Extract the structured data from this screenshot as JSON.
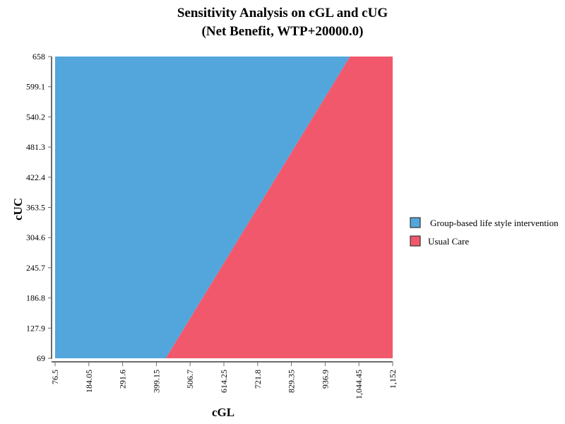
{
  "chart_data": {
    "type": "area",
    "title_line1": "Sensitivity Analysis on cGL and cUG",
    "title_line2": "(Net Benefit, WTP+20000.0)",
    "xlabel": "cGL",
    "ylabel": "cUC",
    "xlim": [
      76.5,
      1152
    ],
    "ylim": [
      69,
      658
    ],
    "x_ticks": [
      "76.5",
      "184.05",
      "291.6",
      "399.15",
      "506.7",
      "614.25",
      "721.8",
      "829.35",
      "936.9",
      "1,044.45",
      "1,152"
    ],
    "y_ticks": [
      "69",
      "127.9",
      "186.8",
      "245.7",
      "304.6",
      "363.5",
      "422.4",
      "481.3",
      "540.2",
      "599.1",
      "658"
    ],
    "boundary": [
      {
        "x": 429,
        "y": 69
      },
      {
        "x": 1016,
        "y": 658
      }
    ],
    "series": [
      {
        "name": "Group-based life style intervention",
        "color": "#52a6dc",
        "region": "upper-left"
      },
      {
        "name": "Usual Care",
        "color": "#f2586c",
        "region": "lower-right"
      }
    ],
    "legend_position": "right",
    "grid": false
  }
}
